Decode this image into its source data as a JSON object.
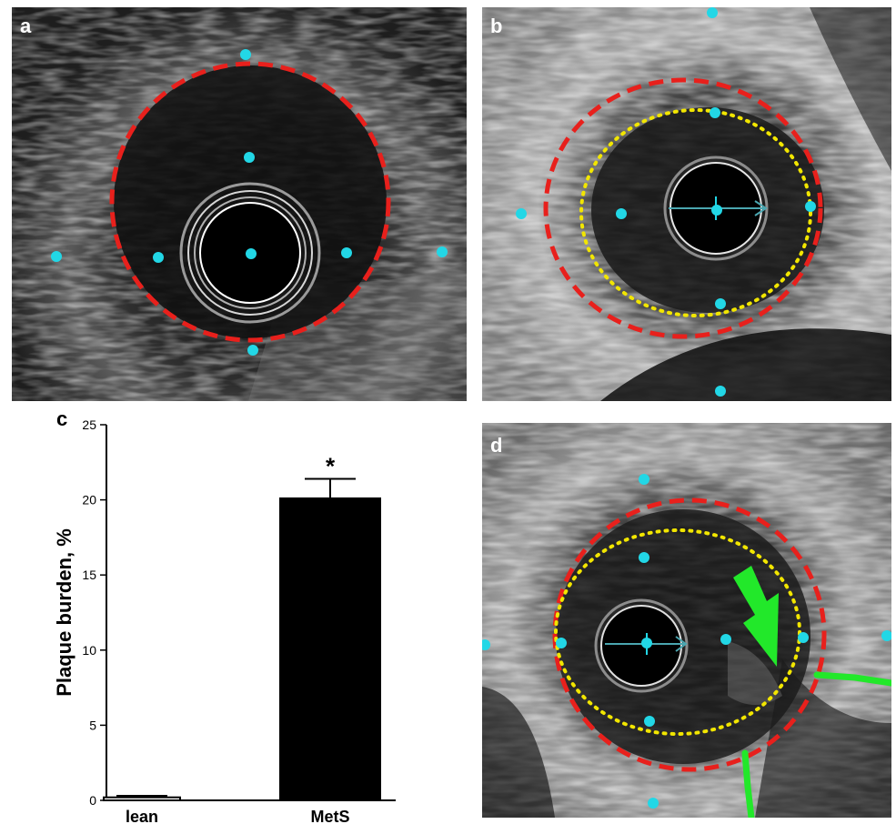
{
  "figure": {
    "panels": [
      {
        "id": "a",
        "label": "a"
      },
      {
        "id": "b",
        "label": "b"
      },
      {
        "id": "c",
        "label": "c"
      },
      {
        "id": "d",
        "label": "d"
      }
    ]
  },
  "colors": {
    "eem_border": "#e8201c",
    "lumen_border": "#f2e600",
    "landmark": "#22d7e6",
    "arrow": "#22e82a",
    "bar": "#000000"
  },
  "chart_data": {
    "type": "bar",
    "categories": [
      "lean",
      "MetS"
    ],
    "values": [
      0.2,
      20.1
    ],
    "errors": [
      0.1,
      1.3
    ],
    "annotations": [
      "",
      "*"
    ],
    "title": "",
    "xlabel": "",
    "ylabel": "Plaque burden, %",
    "ylim": [
      0,
      25
    ],
    "yticks": [
      0,
      5,
      10,
      15,
      20,
      25
    ],
    "grid": false,
    "legend": "none"
  }
}
